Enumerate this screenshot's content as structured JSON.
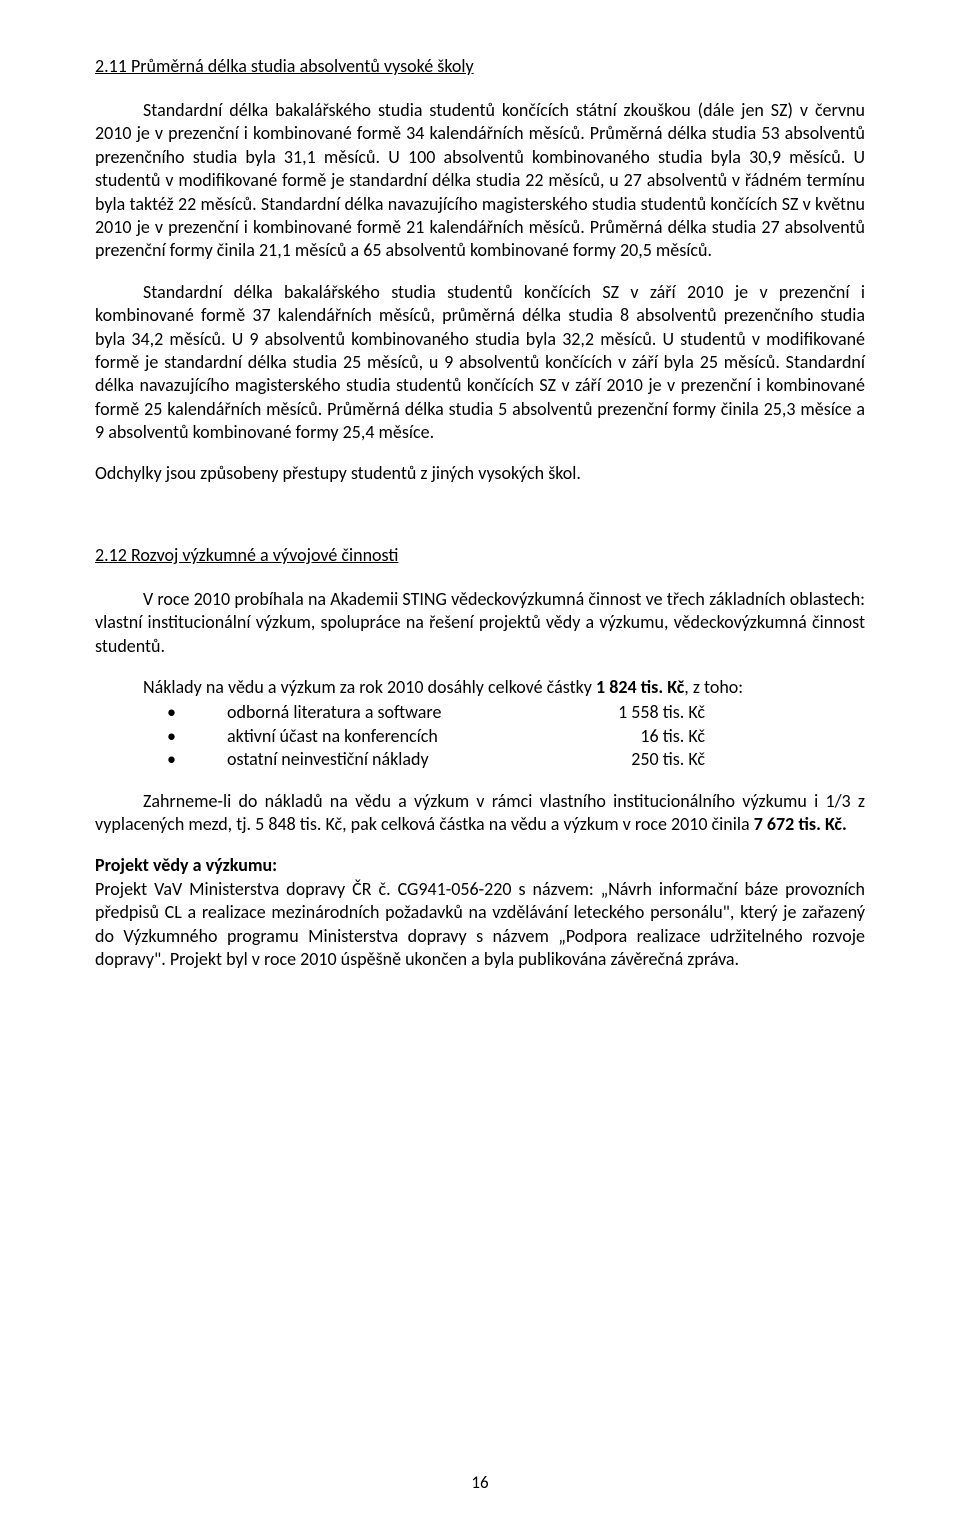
{
  "section1": {
    "heading": "2.11  Průměrná délka studia absolventů vysoké školy",
    "para1": "Standardní délka bakalářského studia studentů končících státní zkouškou (dále jen SZ) v červnu 2010 je v prezenční i kombinované formě 34 kalendářních měsíců. Průměrná délka studia 53 absolventů prezenčního studia byla 31,1 měsíců. U 100 absolventů kombinovaného studia byla 30,9 měsíců. U studentů v modifikované formě je standardní délka studia 22 měsíců, u 27 absolventů v řádném termínu byla taktéž 22 měsíců. Standardní délka navazujícího magisterského studia studentů končících SZ v květnu 2010 je v prezenční i kombinované formě 21 kalendářních měsíců. Průměrná délka studia 27 absolventů prezenční formy činila 21,1 měsíců a 65 absolventů kombinované formy 20,5 měsíců.",
    "para2": "Standardní délka bakalářského studia studentů končících SZ v září 2010 je v prezenční i kombinované formě 37 kalendářních měsíců, průměrná délka studia 8 absolventů prezenčního studia byla 34,2 měsíců. U 9 absolventů kombinovaného studia byla 32,2 měsíců. U studentů v modifikované formě je standardní délka studia 25 měsíců, u 9 absolventů končících v září byla 25 měsíců. Standardní délka navazujícího magisterského studia studentů končících SZ v září 2010 je v prezenční i kombinované formě 25 kalendářních měsíců. Průměrná délka studia 5 absolventů prezenční formy činila 25,3 měsíce a 9 absolventů kombinované formy 25,4 měsíce.",
    "para3": "Odchylky jsou způsobeny přestupy studentů z jiných vysokých škol."
  },
  "section2": {
    "heading": "2.12  Rozvoj výzkumné a vývojové činnosti",
    "para1": "V roce 2010 probíhala na Akademii STING vědeckovýzkumná činnost ve třech základních oblastech: vlastní institucionální výzkum, spolupráce na řešení projektů vědy a výzkumu, vědeckovýzkumná činnost studentů.",
    "costs_intro_pre": "Náklady na vědu a výzkum za rok 2010 dosáhly celkové částky ",
    "costs_intro_bold": "1 824 tis. Kč",
    "costs_intro_post": ", z toho:",
    "bullets": [
      {
        "label": "odborná literatura a software",
        "value": "1 558 tis. Kč"
      },
      {
        "label": "aktivní účast na konferencích",
        "value": "16 tis. Kč"
      },
      {
        "label": "ostatní neinvestiční náklady",
        "value": "250 tis. Kč"
      }
    ],
    "para2_pre": "Zahrneme-li do nákladů na vědu a výzkum v rámci vlastního institucionálního výzkumu i 1/3 z vyplacených mezd, tj. 5 848 tis. Kč, pak celková částka na vědu a výzkum v roce 2010 činila ",
    "para2_bold": "7 672 tis. Kč.",
    "project_heading": "Projekt vědy a výzkumu:",
    "project_text": "Projekt VaV Ministerstva dopravy ČR č.  CG941-056-220 s názvem: „Návrh informační báze provozních předpisů CL a realizace mezinárodních požadavků na vzdělávání leteckého personálu\", který je zařazený do Výzkumného programu Ministerstva dopravy s názvem „Podpora realizace udržitelného rozvoje dopravy\". Projekt byl v roce 2010 úspěšně ukončen a byla publikována závěrečná zpráva."
  },
  "page_number": "16"
}
